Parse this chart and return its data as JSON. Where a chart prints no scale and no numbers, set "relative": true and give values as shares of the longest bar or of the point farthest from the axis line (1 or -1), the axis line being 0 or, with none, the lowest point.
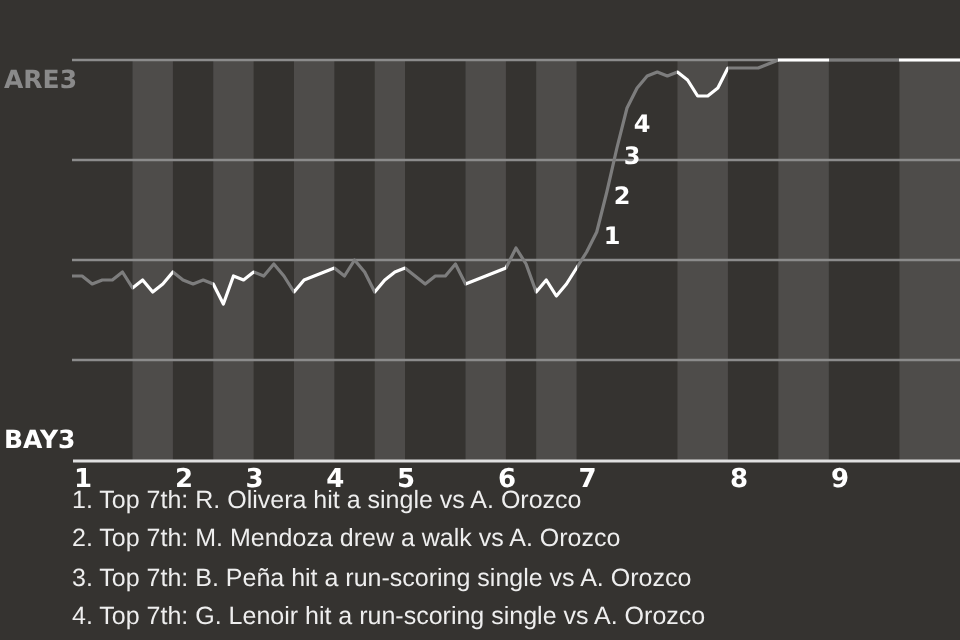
{
  "chart_data": {
    "type": "line",
    "relative": true,
    "categories": [
      null,
      "1",
      null,
      null,
      null,
      null,
      null,
      null,
      null,
      null,
      null,
      "2",
      null,
      null,
      null,
      null,
      null,
      null,
      "3",
      null,
      null,
      null,
      null,
      null,
      null,
      null,
      "4",
      null,
      null,
      null,
      null,
      null,
      null,
      "5",
      null,
      null,
      null,
      null,
      null,
      null,
      null,
      null,
      null,
      "6",
      null,
      null,
      null,
      null,
      null,
      null,
      null,
      "7",
      null,
      null,
      null,
      null,
      null,
      null,
      null,
      null,
      null,
      null,
      null,
      null,
      null,
      null,
      "8",
      null,
      null,
      null,
      null,
      null,
      null,
      null,
      null,
      null,
      "9",
      null,
      null,
      null,
      null,
      null,
      null,
      null,
      null,
      null,
      null,
      null,
      null
    ],
    "grid": "y",
    "series": [
      {
        "color": "#7d7d7d",
        "values": [
          0.46,
          0.46,
          0.44,
          0.45,
          0.45,
          0.47,
          0.43,
          0.45,
          0.42,
          0.44,
          0.47,
          0.45,
          0.44,
          0.45,
          0.44,
          0.39,
          0.46,
          0.45,
          0.47,
          0.46,
          0.49,
          0.46,
          0.42,
          0.45,
          0.46,
          0.47,
          0.48,
          0.46,
          0.5,
          0.47,
          0.42,
          0.45,
          0.47,
          0.48,
          0.46,
          0.44,
          0.46,
          0.46,
          0.49,
          0.44,
          0.45,
          0.46,
          0.47,
          0.48,
          0.53,
          0.49,
          0.42,
          0.45,
          0.41,
          0.44,
          0.48,
          0.52,
          0.57,
          0.67,
          0.78,
          0.88,
          0.93,
          0.96,
          0.97,
          0.96,
          0.97,
          0.95,
          0.91,
          0.91,
          0.93,
          0.98,
          0.98,
          0.98,
          0.98,
          0.99,
          1,
          1,
          1,
          1,
          1,
          1,
          1,
          1,
          1,
          1,
          1,
          1,
          1,
          1,
          1,
          1,
          1,
          1,
          1
        ],
        "colors": [
          "#7d7d7d",
          "#7d7d7d",
          "#7d7d7d",
          "#7d7d7d",
          "#7d7d7d",
          "#7d7d7d",
          "#7d7d7d",
          "#ffffff",
          "#ffffff",
          "#ffffff",
          "#ffffff",
          "#7d7d7d",
          "#7d7d7d",
          "#7d7d7d",
          "#7d7d7d",
          "#ffffff",
          "#ffffff",
          "#ffffff",
          "#ffffff",
          "#7d7d7d",
          "#7d7d7d",
          "#7d7d7d",
          "#7d7d7d",
          "#ffffff",
          "#ffffff",
          "#ffffff",
          "#ffffff",
          "#7d7d7d",
          "#7d7d7d",
          "#7d7d7d",
          "#7d7d7d",
          "#ffffff",
          "#ffffff",
          "#ffffff",
          "#7d7d7d",
          "#7d7d7d",
          "#7d7d7d",
          "#7d7d7d",
          "#7d7d7d",
          "#7d7d7d",
          "#ffffff",
          "#ffffff",
          "#ffffff",
          "#ffffff",
          "#7d7d7d",
          "#7d7d7d",
          "#7d7d7d",
          "#ffffff",
          "#ffffff",
          "#ffffff",
          "#ffffff",
          "#7d7d7d",
          "#7d7d7d",
          "#7d7d7d",
          "#7d7d7d",
          "#7d7d7d",
          "#7d7d7d",
          "#7d7d7d",
          "#7d7d7d",
          "#7d7d7d",
          "#7d7d7d",
          "#ffffff",
          "#ffffff",
          "#ffffff",
          "#ffffff",
          "#ffffff",
          "#7d7d7d",
          "#7d7d7d",
          "#7d7d7d",
          "#7d7d7d",
          "#7d7d7d",
          "#ffffff",
          "#ffffff",
          "#ffffff",
          "#ffffff",
          "#ffffff",
          "#7d7d7d",
          "#7d7d7d",
          "#7d7d7d",
          "#7d7d7d",
          "#7d7d7d",
          "#7d7d7d",
          "#7d7d7d",
          "#ffffff",
          "#ffffff",
          "#ffffff",
          "#ffffff",
          "#ffffff",
          "#ffffff"
        ]
      }
    ],
    "annotations": [
      "ARE3",
      "BAY3",
      "1",
      "2",
      "3",
      "4",
      "1. Top 7th: R. Olivera hit a single vs A. Orozco",
      "2. Top 7th: M. Mendoza drew a walk vs A. Orozco",
      "3. Top 7th: B. Peña hit a run-scoring single vs A. Orozco",
      "4. Top 7th: G. Lenoir hit a run-scoring single vs A. Orozco"
    ]
  }
}
